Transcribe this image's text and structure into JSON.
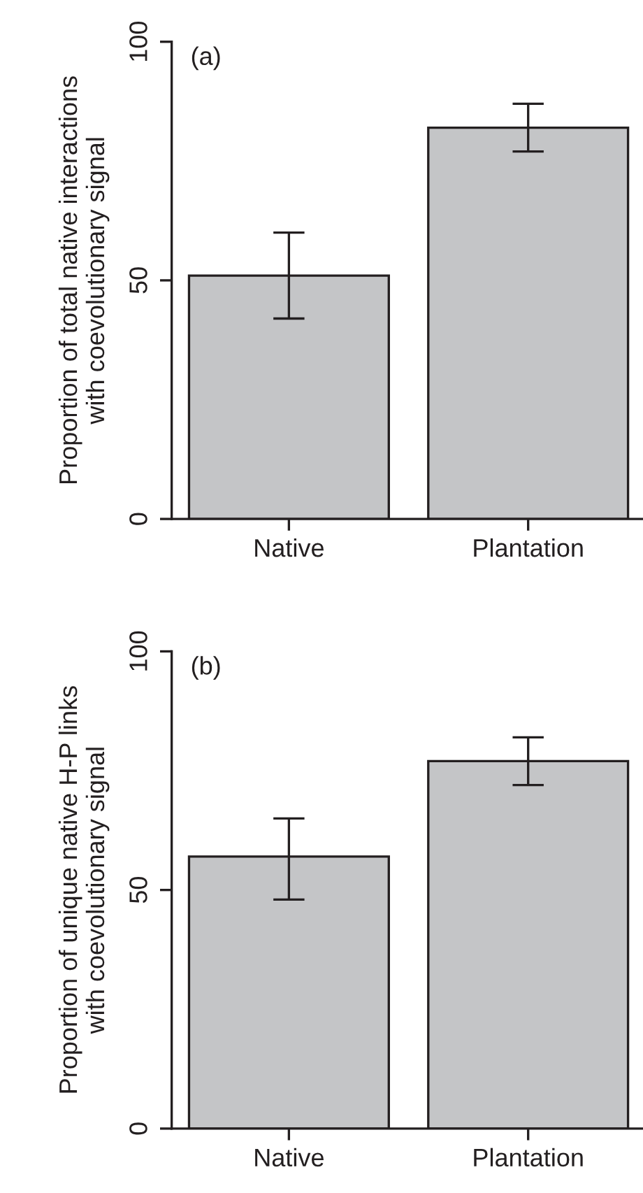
{
  "chart_data": [
    {
      "type": "bar",
      "ylabel": "Proportion of total native interactions\nwith coevolutionary signal",
      "annotations": [
        "(a)"
      ],
      "categories": [
        "Native",
        "Plantation"
      ],
      "values": [
        51,
        82
      ],
      "errors": [
        [
          42,
          60
        ],
        [
          77,
          87
        ]
      ],
      "color": "#c4c5c7",
      "ylim": [
        0,
        100
      ],
      "yticks": [
        0,
        50,
        100
      ],
      "grid": false,
      "legend": false
    },
    {
      "type": "bar",
      "ylabel": "Proportion of unique native H-P links\nwith coevolutionary signal",
      "annotations": [
        "(b)"
      ],
      "categories": [
        "Native",
        "Plantation"
      ],
      "values": [
        57,
        77
      ],
      "errors": [
        [
          48,
          65
        ],
        [
          72,
          82
        ]
      ],
      "color": "#c4c5c7",
      "ylim": [
        0,
        100
      ],
      "yticks": [
        0,
        50,
        100
      ],
      "grid": false,
      "legend": false
    }
  ]
}
